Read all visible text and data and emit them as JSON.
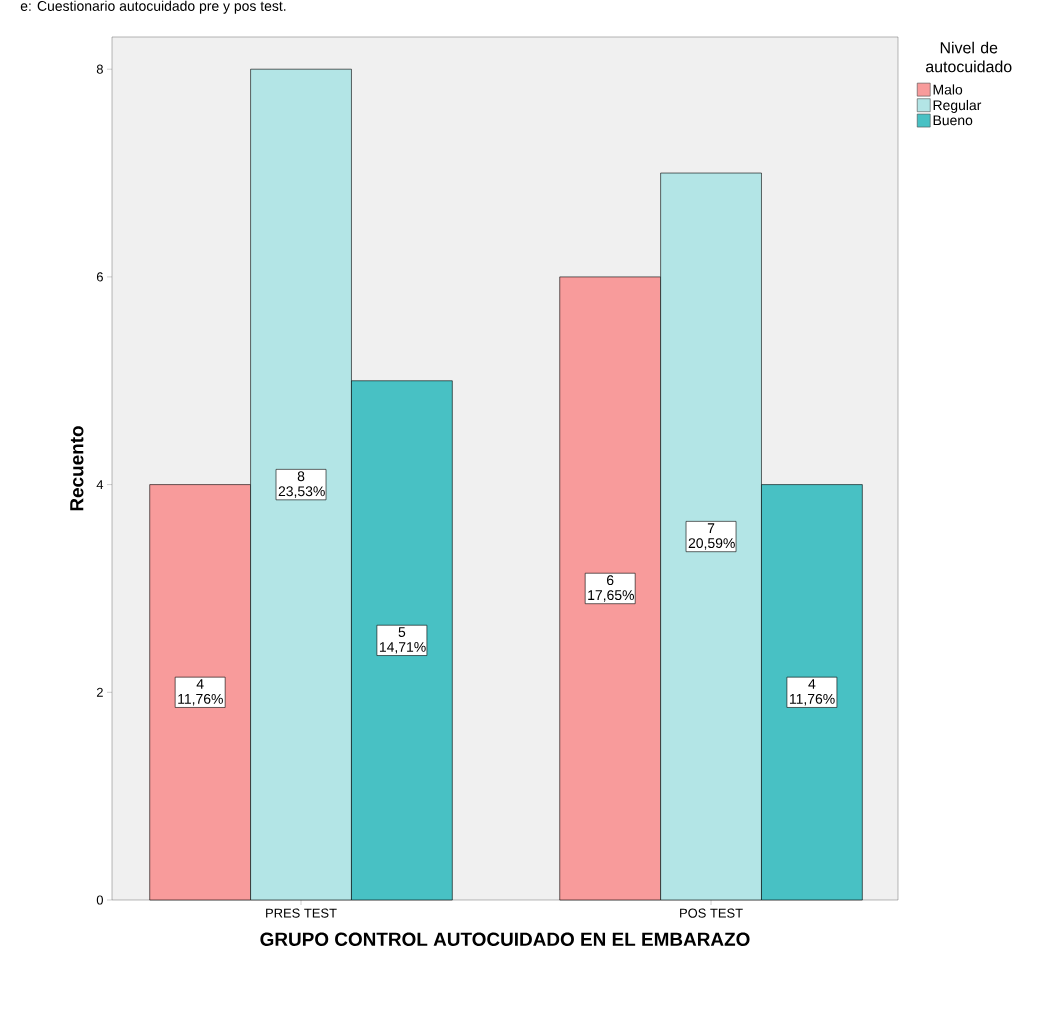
{
  "chart_data": {
    "type": "bar",
    "categories": [
      "PRES TEST",
      "POS TEST"
    ],
    "xlabel": "GRUPO CONTROL AUTOCUIDADO EN EL EMBARAZO",
    "ylabel": "Recuento",
    "legend_title": "Nivel de autocuidado",
    "legend": "right",
    "ylim": [
      0,
      8.31
    ],
    "yticks": [
      0,
      2,
      4,
      6,
      8
    ],
    "annotations": [
      "e: Cuestionario autocuidado pre y pos test."
    ],
    "series": [
      {
        "name": "Malo",
        "color": "#f89b9b",
        "values": [
          4,
          6
        ],
        "value_labels": [
          "4 11,76%",
          "6 17,65%"
        ]
      },
      {
        "name": "Regular",
        "color": "#b3e5e6",
        "values": [
          8,
          7
        ],
        "value_labels": [
          "8 23,53%",
          "7 20,59%"
        ]
      },
      {
        "name": "Bueno",
        "color": "#48c1c4",
        "values": [
          5,
          4
        ],
        "value_labels": [
          "5 14,71%",
          "4 11,76%"
        ]
      }
    ]
  }
}
